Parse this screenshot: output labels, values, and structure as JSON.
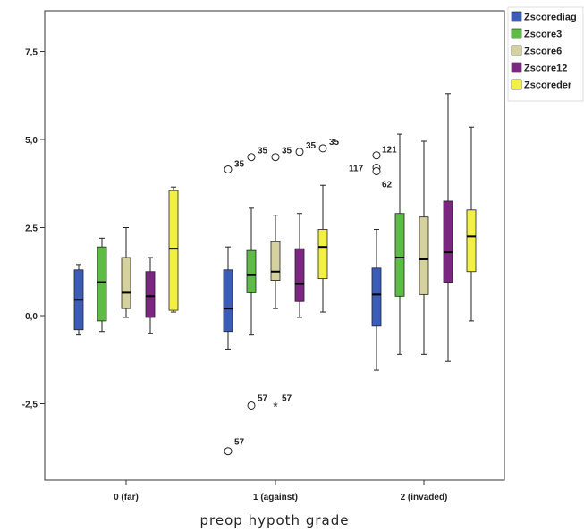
{
  "chart_data": {
    "type": "boxplot",
    "title": "",
    "xlabel": "preop hypoth grade",
    "ylabel": "",
    "ylim": [
      -4.5,
      8.6
    ],
    "yticks": [
      {
        "value": 7.5,
        "label": "7,5"
      },
      {
        "value": 5.0,
        "label": "5,0"
      },
      {
        "value": 2.5,
        "label": "2,5"
      },
      {
        "value": 0.0,
        "label": "0,0"
      },
      {
        "value": -2.5,
        "label": "-2,5"
      }
    ],
    "categories": [
      "0 (far)",
      "1 (against)",
      "2 (invaded)"
    ],
    "grid": false,
    "legend_position": "top-right",
    "series": [
      {
        "name": "Zscorediag",
        "color": "#3b5db8",
        "boxes": [
          {
            "min": -0.55,
            "q1": -0.4,
            "median": 0.45,
            "q3": 1.3,
            "max": 1.45
          },
          {
            "min": -0.95,
            "q1": -0.45,
            "median": 0.2,
            "q3": 1.3,
            "max": 1.95
          },
          {
            "min": -1.55,
            "q1": -0.3,
            "median": 0.6,
            "q3": 1.35,
            "max": 2.45
          }
        ]
      },
      {
        "name": "Zscore3",
        "color": "#5dbb46",
        "boxes": [
          {
            "min": -0.45,
            "q1": -0.15,
            "median": 0.95,
            "q3": 1.95,
            "max": 2.2
          },
          {
            "min": -0.55,
            "q1": 0.65,
            "median": 1.15,
            "q3": 1.85,
            "max": 3.05
          },
          {
            "min": -1.1,
            "q1": 0.55,
            "median": 1.65,
            "q3": 2.9,
            "max": 5.15
          }
        ]
      },
      {
        "name": "Zscore6",
        "color": "#d6d2a0",
        "boxes": [
          {
            "min": -0.05,
            "q1": 0.2,
            "median": 0.65,
            "q3": 1.65,
            "max": 2.5
          },
          {
            "min": 0.2,
            "q1": 1.0,
            "median": 1.25,
            "q3": 2.1,
            "max": 2.85
          },
          {
            "min": -1.1,
            "q1": 0.6,
            "median": 1.6,
            "q3": 2.8,
            "max": 4.95
          }
        ]
      },
      {
        "name": "Zscore12",
        "color": "#7b2680",
        "boxes": [
          {
            "min": -0.5,
            "q1": -0.05,
            "median": 0.55,
            "q3": 1.25,
            "max": 1.65
          },
          {
            "min": -0.05,
            "q1": 0.4,
            "median": 0.9,
            "q3": 1.9,
            "max": 2.9
          },
          {
            "min": -1.3,
            "q1": 0.95,
            "median": 1.8,
            "q3": 3.25,
            "max": 6.3
          }
        ]
      },
      {
        "name": "Zscoreder",
        "color": "#f2f042",
        "boxes": [
          {
            "min": 0.1,
            "q1": 0.15,
            "median": 1.9,
            "q3": 3.55,
            "max": 3.65
          },
          {
            "min": 0.1,
            "q1": 1.05,
            "median": 1.95,
            "q3": 2.45,
            "max": 3.7
          },
          {
            "min": -0.15,
            "q1": 1.25,
            "median": 2.25,
            "q3": 3.0,
            "max": 5.35
          }
        ]
      }
    ],
    "outliers": [
      {
        "category": 1,
        "series": 0,
        "value": 4.15,
        "label": "35",
        "symbol": "circle"
      },
      {
        "category": 1,
        "series": 1,
        "value": 4.5,
        "label": "35",
        "symbol": "circle"
      },
      {
        "category": 1,
        "series": 2,
        "value": 4.5,
        "label": "35",
        "symbol": "circle"
      },
      {
        "category": 1,
        "series": 3,
        "value": 4.65,
        "label": "35",
        "symbol": "circle"
      },
      {
        "category": 1,
        "series": 4,
        "value": 4.75,
        "label": "35",
        "symbol": "circle"
      },
      {
        "category": 1,
        "series": 0,
        "value": -3.85,
        "label": "57",
        "symbol": "circle"
      },
      {
        "category": 1,
        "series": 1,
        "value": -2.55,
        "label": "57",
        "symbol": "circle"
      },
      {
        "category": 1,
        "series": 2,
        "value": -2.55,
        "label": "57",
        "symbol": "star"
      },
      {
        "category": 2,
        "series": 0,
        "value": 4.55,
        "label": "121",
        "symbol": "circle"
      },
      {
        "category": 2,
        "series": 0,
        "value": 4.2,
        "label": "117",
        "symbol": "circle"
      },
      {
        "category": 2,
        "series": 0,
        "value": 4.1,
        "label": "62",
        "symbol": "circle"
      }
    ]
  }
}
